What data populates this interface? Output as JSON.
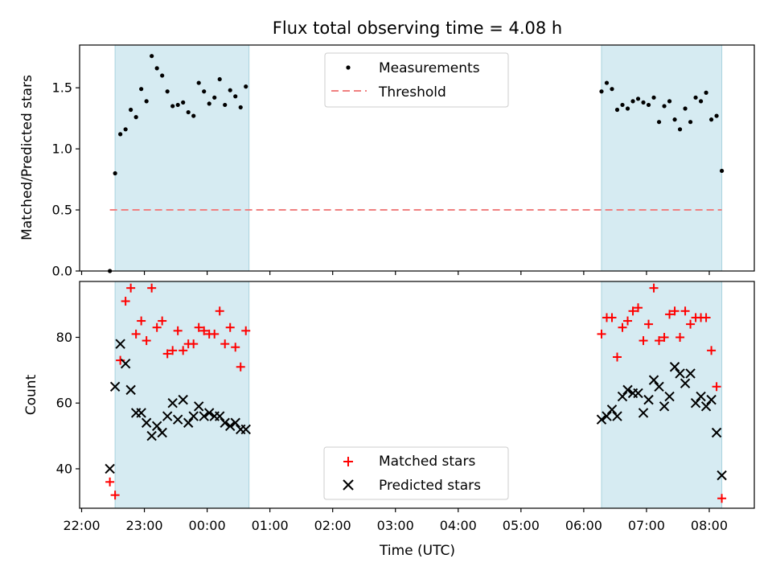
{
  "chart_data": [
    {
      "type": "scatter",
      "title": "Flux total observing time = 4.08 h",
      "xlabel": "",
      "ylabel": "Matched/Predicted stars",
      "ylim": [
        0,
        1.85
      ],
      "yticks": [
        "0.0",
        "0.5",
        "1.0",
        "1.5"
      ],
      "ytick_values": [
        0,
        0.5,
        1.0,
        1.5
      ],
      "shaded_ranges": [
        [
          "22:32",
          "00:40"
        ],
        [
          "06:17",
          "08:12"
        ]
      ],
      "threshold": {
        "name": "Threshold",
        "value": 0.5,
        "x_start": "22:27",
        "x_end": "08:12",
        "color": "#f08080",
        "style": "dashed"
      },
      "series": [
        {
          "name": "Measurements",
          "marker": "dot",
          "color": "#000000",
          "x": [
            "22:27",
            "22:32",
            "22:37",
            "22:42",
            "22:47",
            "22:52",
            "22:57",
            "23:02",
            "23:07",
            "23:12",
            "23:17",
            "23:22",
            "23:27",
            "23:32",
            "23:37",
            "23:42",
            "23:47",
            "23:52",
            "23:57",
            "00:02",
            "00:07",
            "00:12",
            "00:17",
            "00:22",
            "00:27",
            "00:32",
            "00:37",
            "06:17",
            "06:22",
            "06:27",
            "06:32",
            "06:37",
            "06:42",
            "06:47",
            "06:52",
            "06:57",
            "07:02",
            "07:07",
            "07:12",
            "07:17",
            "07:22",
            "07:27",
            "07:32",
            "07:37",
            "07:42",
            "07:47",
            "07:52",
            "07:57",
            "08:02",
            "08:07",
            "08:12"
          ],
          "y": [
            0.0,
            0.8,
            1.12,
            1.16,
            1.32,
            1.26,
            1.49,
            1.39,
            1.76,
            1.66,
            1.6,
            1.47,
            1.35,
            1.36,
            1.38,
            1.3,
            1.27,
            1.54,
            1.47,
            1.37,
            1.42,
            1.57,
            1.36,
            1.48,
            1.43,
            1.34,
            1.51,
            1.47,
            1.54,
            1.49,
            1.32,
            1.36,
            1.33,
            1.39,
            1.41,
            1.38,
            1.36,
            1.42,
            1.22,
            1.35,
            1.39,
            1.24,
            1.16,
            1.33,
            1.22,
            1.42,
            1.39,
            1.46,
            1.24,
            1.27,
            0.82
          ]
        }
      ],
      "legend": "top-center",
      "grid": false
    },
    {
      "type": "scatter",
      "title": "",
      "xlabel": "Time (UTC)",
      "ylabel": "Count",
      "ylim": [
        28,
        97
      ],
      "yticks": [
        "40",
        "60",
        "80"
      ],
      "ytick_values": [
        40,
        60,
        80
      ],
      "xlim": [
        "21:57",
        "08:40"
      ],
      "xticks": [
        "22:00",
        "23:00",
        "00:00",
        "01:00",
        "02:00",
        "03:00",
        "04:00",
        "05:00",
        "06:00",
        "07:00",
        "08:00"
      ],
      "shaded_ranges": [
        [
          "22:32",
          "00:40"
        ],
        [
          "06:17",
          "08:12"
        ]
      ],
      "series": [
        {
          "name": "Matched stars",
          "marker": "plus",
          "color": "#ff0000",
          "x": [
            "22:27",
            "22:32",
            "22:37",
            "22:42",
            "22:47",
            "22:52",
            "22:57",
            "23:02",
            "23:07",
            "23:12",
            "23:17",
            "23:22",
            "23:27",
            "23:32",
            "23:37",
            "23:42",
            "23:47",
            "23:52",
            "23:57",
            "00:02",
            "00:07",
            "00:12",
            "00:17",
            "00:22",
            "00:27",
            "00:32",
            "00:37",
            "06:17",
            "06:22",
            "06:27",
            "06:32",
            "06:37",
            "06:42",
            "06:47",
            "06:52",
            "06:57",
            "07:02",
            "07:07",
            "07:12",
            "07:17",
            "07:22",
            "07:27",
            "07:32",
            "07:37",
            "07:42",
            "07:47",
            "07:52",
            "07:57",
            "08:02",
            "08:07",
            "08:12"
          ],
          "y": [
            36,
            32,
            73,
            91,
            95,
            81,
            85,
            79,
            95,
            83,
            85,
            75,
            76,
            82,
            76,
            78,
            78,
            83,
            82,
            81,
            81,
            88,
            78,
            83,
            77,
            71,
            82,
            81,
            86,
            86,
            74,
            83,
            85,
            88,
            89,
            79,
            84,
            95,
            79,
            80,
            87,
            88,
            80,
            88,
            84,
            86,
            86,
            86,
            76,
            65,
            31
          ]
        },
        {
          "name": "Predicted stars",
          "marker": "x",
          "color": "#000000",
          "x": [
            "22:27",
            "22:32",
            "22:37",
            "22:42",
            "22:47",
            "22:52",
            "22:57",
            "23:02",
            "23:07",
            "23:12",
            "23:17",
            "23:22",
            "23:27",
            "23:32",
            "23:37",
            "23:42",
            "23:47",
            "23:52",
            "23:57",
            "00:02",
            "00:07",
            "00:12",
            "00:17",
            "00:22",
            "00:27",
            "00:32",
            "00:37",
            "06:17",
            "06:22",
            "06:27",
            "06:32",
            "06:37",
            "06:42",
            "06:47",
            "06:52",
            "06:57",
            "07:02",
            "07:07",
            "07:12",
            "07:17",
            "07:22",
            "07:27",
            "07:32",
            "07:37",
            "07:42",
            "07:47",
            "07:52",
            "07:57",
            "08:02",
            "08:07",
            "08:12"
          ],
          "y": [
            40,
            65,
            78,
            72,
            64,
            57,
            57,
            54,
            50,
            53,
            51,
            56,
            60,
            55,
            61,
            54,
            56,
            59,
            56,
            57,
            56,
            56,
            54,
            53,
            54,
            52,
            52,
            55,
            56,
            58,
            56,
            62,
            64,
            63,
            63,
            57,
            61,
            67,
            65,
            59,
            62,
            71,
            69,
            66,
            69,
            60,
            62,
            59,
            61,
            51,
            38
          ]
        }
      ],
      "legend": "lower-center",
      "grid": false
    }
  ]
}
